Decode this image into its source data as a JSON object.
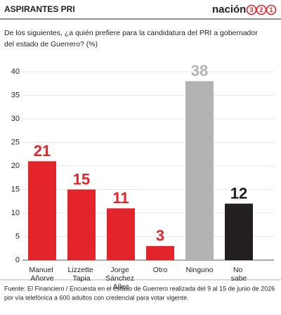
{
  "header": {
    "title": "ASPIRANTES PRI",
    "logo_text": "nación",
    "logo_digits": [
      "3",
      "2",
      "1"
    ]
  },
  "chart_data": {
    "type": "bar",
    "subtitle_lines": [
      "De los siguientes, ¿a quién prefiere para la candidatura del PRI a gobernador",
      "del estado de Guerrero?    (%)"
    ],
    "categories": [
      "Manuel Añorve",
      "Lizzette Tapia",
      "Jorge Sánchez Allec",
      "Otro",
      "Ninguno",
      "No sabe"
    ],
    "values": [
      21,
      15,
      11,
      3,
      38,
      12
    ],
    "colors": [
      "#e3242b",
      "#e3242b",
      "#e3242b",
      "#e3242b",
      "#b3b3b3",
      "#231f20"
    ],
    "ylim": [
      0,
      40
    ],
    "yticks": [
      0,
      5,
      10,
      15,
      20,
      25,
      30,
      35,
      40
    ],
    "grid": true,
    "source_lines": [
      "Fuente: El Financiero / Encuesta en el estado de Guerrero realizada del 9 al 15 de junio de 2026",
      "por vía telefónica a 600 adultos con credencial para votar vigente."
    ]
  }
}
